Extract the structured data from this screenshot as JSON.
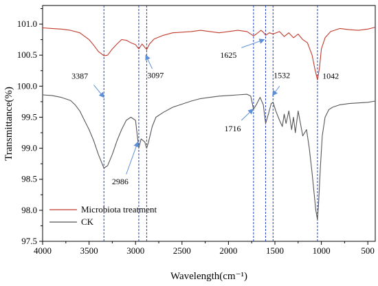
{
  "chart_data": {
    "type": "line",
    "xlabel": "Wavelength(cm⁻¹)",
    "ylabel": "Transmittance(%)",
    "xlim": [
      4000,
      420
    ],
    "ylim": [
      97.5,
      101.3
    ],
    "x_reversed": true,
    "x_ticks": [
      4000,
      3500,
      3000,
      2500,
      2000,
      1500,
      1000,
      500
    ],
    "x_tick_labels": [
      "4000",
      "3500",
      "3000",
      "2500",
      "2000",
      "1500",
      "1000",
      "500"
    ],
    "y_ticks": [
      97.5,
      98.0,
      98.5,
      99.0,
      99.5,
      100.0,
      100.5,
      101.0
    ],
    "y_tick_labels": [
      "97.5",
      "98.0",
      "98.5",
      "99.0",
      "99.5",
      "100.0",
      "100.5",
      "101.0"
    ],
    "grid": false,
    "legend": "bottom-left",
    "reference_lines_x": [
      3340,
      2965,
      2880,
      1730,
      1600,
      1520,
      1042
    ],
    "reference_line_color": "#1f3fc4",
    "series": [
      {
        "name": "Microbiota treatment",
        "color": "#c0392b",
        "points": [
          [
            4000,
            100.94
          ],
          [
            3900,
            100.93
          ],
          [
            3800,
            100.92
          ],
          [
            3700,
            100.9
          ],
          [
            3600,
            100.86
          ],
          [
            3500,
            100.75
          ],
          [
            3450,
            100.66
          ],
          [
            3400,
            100.56
          ],
          [
            3340,
            100.49
          ],
          [
            3300,
            100.5
          ],
          [
            3250,
            100.6
          ],
          [
            3200,
            100.68
          ],
          [
            3150,
            100.75
          ],
          [
            3100,
            100.74
          ],
          [
            3050,
            100.7
          ],
          [
            3000,
            100.67
          ],
          [
            2965,
            100.6
          ],
          [
            2930,
            100.68
          ],
          [
            2880,
            100.59
          ],
          [
            2850,
            100.68
          ],
          [
            2800,
            100.76
          ],
          [
            2700,
            100.82
          ],
          [
            2600,
            100.86
          ],
          [
            2500,
            100.87
          ],
          [
            2400,
            100.88
          ],
          [
            2300,
            100.9
          ],
          [
            2200,
            100.88
          ],
          [
            2100,
            100.86
          ],
          [
            2000,
            100.88
          ],
          [
            1900,
            100.9
          ],
          [
            1800,
            100.88
          ],
          [
            1730,
            100.81
          ],
          [
            1700,
            100.84
          ],
          [
            1650,
            100.9
          ],
          [
            1625,
            100.87
          ],
          [
            1600,
            100.82
          ],
          [
            1560,
            100.86
          ],
          [
            1520,
            100.84
          ],
          [
            1450,
            100.88
          ],
          [
            1400,
            100.8
          ],
          [
            1350,
            100.86
          ],
          [
            1300,
            100.78
          ],
          [
            1250,
            100.84
          ],
          [
            1200,
            100.75
          ],
          [
            1150,
            100.7
          ],
          [
            1100,
            100.5
          ],
          [
            1070,
            100.28
          ],
          [
            1042,
            100.1
          ],
          [
            1020,
            100.3
          ],
          [
            1000,
            100.6
          ],
          [
            960,
            100.78
          ],
          [
            900,
            100.88
          ],
          [
            800,
            100.93
          ],
          [
            700,
            100.91
          ],
          [
            600,
            100.9
          ],
          [
            500,
            100.92
          ],
          [
            420,
            100.95
          ]
        ]
      },
      {
        "name": "CK",
        "color": "#555555",
        "points": [
          [
            4000,
            99.86
          ],
          [
            3900,
            99.85
          ],
          [
            3800,
            99.82
          ],
          [
            3700,
            99.77
          ],
          [
            3650,
            99.7
          ],
          [
            3600,
            99.6
          ],
          [
            3550,
            99.45
          ],
          [
            3500,
            99.3
          ],
          [
            3450,
            99.12
          ],
          [
            3400,
            98.9
          ],
          [
            3340,
            98.68
          ],
          [
            3300,
            98.72
          ],
          [
            3250,
            98.9
          ],
          [
            3200,
            99.12
          ],
          [
            3150,
            99.3
          ],
          [
            3100,
            99.45
          ],
          [
            3050,
            99.5
          ],
          [
            3000,
            99.45
          ],
          [
            2965,
            99.0
          ],
          [
            2940,
            99.15
          ],
          [
            2900,
            99.1
          ],
          [
            2880,
            99.0
          ],
          [
            2860,
            99.1
          ],
          [
            2820,
            99.35
          ],
          [
            2780,
            99.5
          ],
          [
            2700,
            99.58
          ],
          [
            2600,
            99.66
          ],
          [
            2500,
            99.71
          ],
          [
            2400,
            99.76
          ],
          [
            2300,
            99.8
          ],
          [
            2200,
            99.82
          ],
          [
            2100,
            99.84
          ],
          [
            2000,
            99.85
          ],
          [
            1900,
            99.86
          ],
          [
            1800,
            99.87
          ],
          [
            1760,
            99.84
          ],
          [
            1730,
            99.63
          ],
          [
            1700,
            99.7
          ],
          [
            1660,
            99.82
          ],
          [
            1625,
            99.7
          ],
          [
            1600,
            99.4
          ],
          [
            1570,
            99.55
          ],
          [
            1540,
            99.72
          ],
          [
            1520,
            99.74
          ],
          [
            1490,
            99.6
          ],
          [
            1450,
            99.45
          ],
          [
            1420,
            99.35
          ],
          [
            1400,
            99.55
          ],
          [
            1380,
            99.4
          ],
          [
            1350,
            99.6
          ],
          [
            1320,
            99.3
          ],
          [
            1300,
            99.5
          ],
          [
            1280,
            99.25
          ],
          [
            1250,
            99.6
          ],
          [
            1200,
            99.2
          ],
          [
            1160,
            99.3
          ],
          [
            1130,
            99.0
          ],
          [
            1100,
            98.6
          ],
          [
            1080,
            98.3
          ],
          [
            1060,
            98.0
          ],
          [
            1042,
            97.85
          ],
          [
            1030,
            98.1
          ],
          [
            1010,
            98.7
          ],
          [
            990,
            99.2
          ],
          [
            960,
            99.5
          ],
          [
            920,
            99.62
          ],
          [
            880,
            99.66
          ],
          [
            800,
            99.7
          ],
          [
            700,
            99.72
          ],
          [
            600,
            99.73
          ],
          [
            500,
            99.74
          ],
          [
            420,
            99.76
          ]
        ]
      }
    ],
    "annotations": [
      {
        "text": "3387",
        "label_x": 3600,
        "label_y": 100.12,
        "arrow_from": [
          3450,
          100.02
        ],
        "arrow_to": [
          3340,
          99.82
        ]
      },
      {
        "text": "3097",
        "label_x": 2785,
        "label_y": 100.13,
        "arrow_from": [
          2820,
          100.28
        ],
        "arrow_to": [
          2890,
          100.5
        ]
      },
      {
        "text": "1625",
        "label_x": 2000,
        "label_y": 100.46,
        "arrow_from": [
          1860,
          100.62
        ],
        "arrow_to": [
          1615,
          100.75
        ]
      },
      {
        "text": "1532",
        "label_x": 1425,
        "label_y": 100.13,
        "arrow_from": [
          1450,
          100.0
        ],
        "arrow_to": [
          1525,
          99.85
        ]
      },
      {
        "text": "1042",
        "label_x": 900,
        "label_y": 100.12,
        "arrow_from": null,
        "arrow_to": null
      },
      {
        "text": "2986",
        "label_x": 3165,
        "label_y": 98.42,
        "arrow_from": [
          3100,
          98.58
        ],
        "arrow_to": [
          2975,
          99.1
        ]
      },
      {
        "text": "1716",
        "label_x": 1955,
        "label_y": 99.27,
        "arrow_from": [
          1860,
          99.45
        ],
        "arrow_to": [
          1735,
          99.63
        ]
      }
    ]
  }
}
